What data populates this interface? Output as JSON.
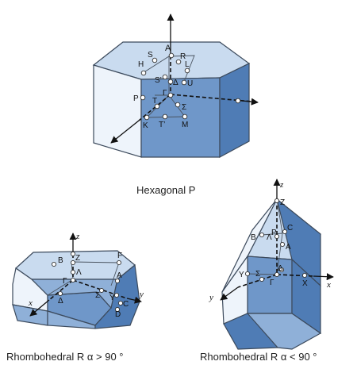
{
  "captions": {
    "hexagonal": "Hexagonal P",
    "rhombo_obtuse": "Rhombohedral R  α > 90 °",
    "rhombo_acute": "Rhombohedral R  α < 90 °"
  },
  "hexagonal_points": {
    "A": "A",
    "S": "S",
    "R": "R",
    "H": "H",
    "L": "L",
    "S_prime": "S’",
    "U": "U",
    "Delta": "Δ",
    "P": "P",
    "Gamma": "Γ",
    "Sigma": "Σ",
    "T": "T",
    "K": "K",
    "T_prime": "T’",
    "M": "M"
  },
  "rhombo_obtuse_points": {
    "z": "z",
    "B": "B",
    "Z": "Z",
    "F": "F",
    "Lambda": "Λ",
    "Gamma": "Γ",
    "A": "A",
    "Delta": "Δ",
    "Sigma": "Σ",
    "Y": "Y",
    "C": "C",
    "D": "D",
    "x": "x",
    "y": "y"
  },
  "rhombo_acute_points": {
    "z": "z",
    "Z": "Z",
    "B": "B",
    "Lambda": "Λ",
    "P": "P",
    "C": "C",
    "A": "A",
    "Y": "Y",
    "Sigma": "Σ",
    "Delta": "Δ",
    "Gamma": "Γ",
    "X": "X",
    "x": "x",
    "y": "y"
  },
  "colors": {
    "face_top": "#c9dbef",
    "face_left": "#eef4fb",
    "face_front": "#6f97c9",
    "face_side": "#4f7cb5"
  }
}
